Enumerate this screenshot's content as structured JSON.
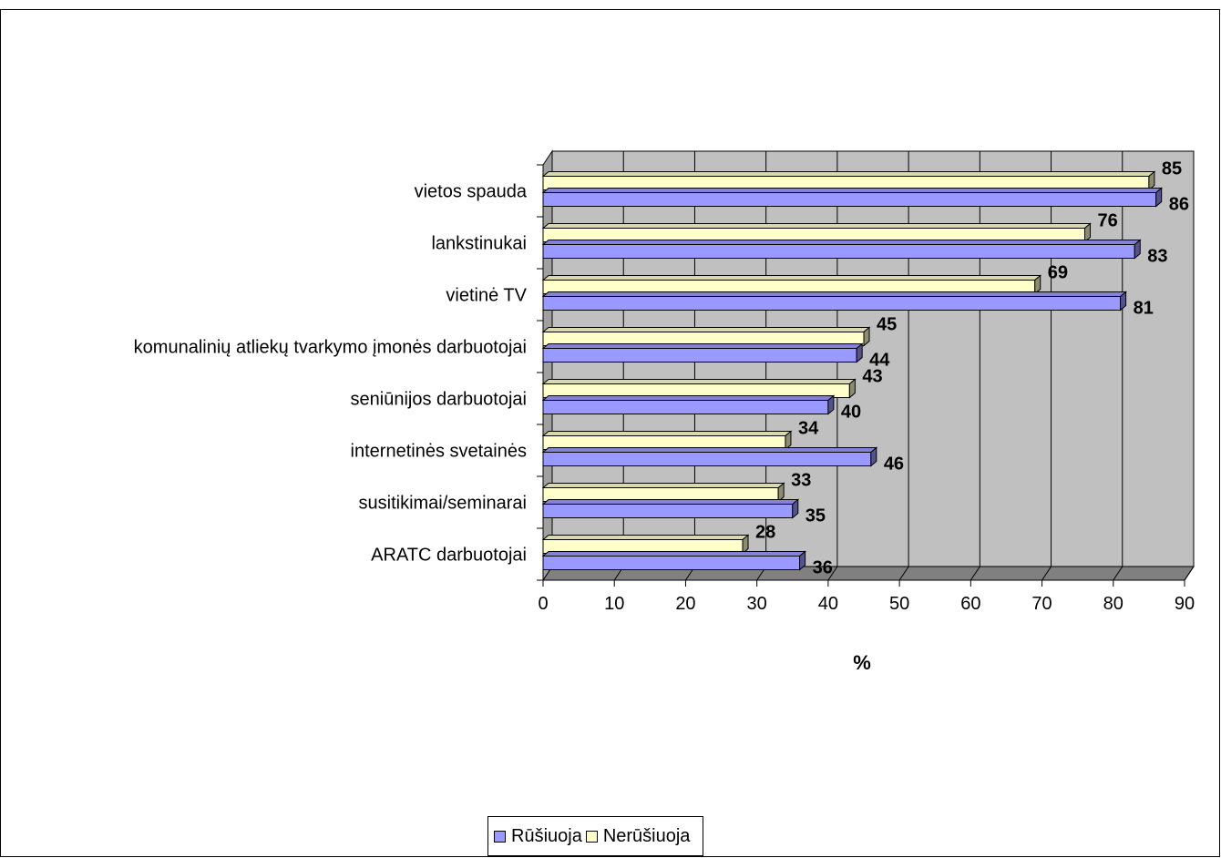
{
  "chart_data": {
    "type": "bar",
    "orientation": "horizontal",
    "style": "3d",
    "categories": [
      "vietos spauda",
      "lankstinukai",
      "vietinė TV",
      "komunalinių atliekų tvarkymo įmonės darbuotojai",
      "seniūnijos darbuotojai",
      "internetinės svetainės",
      "susitikimai/seminarai",
      "ARATC darbuotojai"
    ],
    "series": [
      {
        "name": "Rūšiuoja",
        "color": "#9999ff",
        "values": [
          86,
          83,
          81,
          44,
          40,
          46,
          35,
          36
        ]
      },
      {
        "name": "Nerūšiuoja",
        "color": "#ffffcc",
        "values": [
          85,
          76,
          69,
          45,
          43,
          34,
          33,
          28
        ]
      }
    ],
    "xlabel": "%",
    "ylabel": "",
    "xlim": [
      0,
      90
    ],
    "ticks": [
      "0",
      "10",
      "20",
      "30",
      "40",
      "50",
      "60",
      "70",
      "80",
      "90"
    ],
    "grid": true,
    "wall_color": "#c0c0c0",
    "legend_position": "bottom"
  }
}
